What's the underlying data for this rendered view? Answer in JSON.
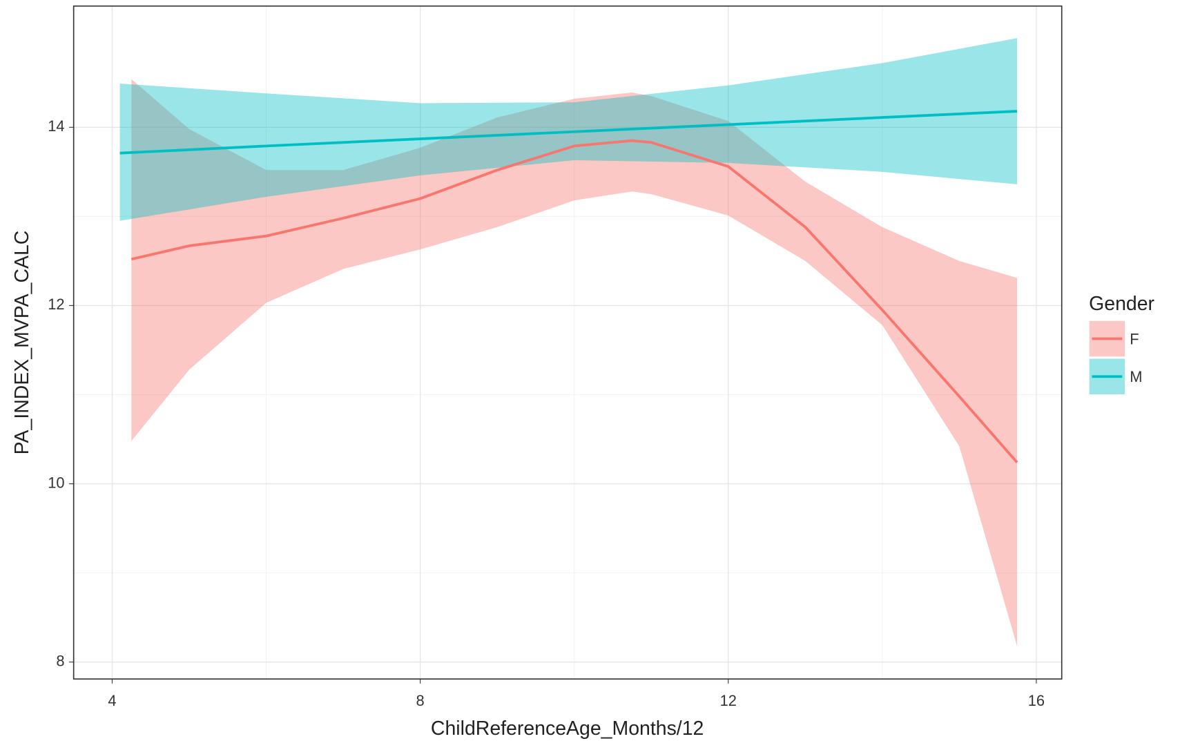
{
  "chart_data": {
    "type": "line-ribbon",
    "xlabel": "ChildReferenceAge_Months/12",
    "ylabel": "PA_INDEX_MVPA_CALC",
    "legend_title": "Gender",
    "xlim": [
      3.5,
      16.33
    ],
    "ylim": [
      7.81,
      15.36
    ],
    "xticks": [
      4,
      8,
      12,
      16
    ],
    "yticks": [
      8,
      10,
      12,
      14
    ],
    "x_minor_ticks": [
      6,
      10,
      14
    ],
    "y_minor_ticks": [
      9,
      11,
      13
    ],
    "grid": true,
    "legend": "right",
    "series": [
      {
        "name": "F",
        "color": "#F8766D",
        "x": [
          4.25,
          5,
          6,
          7,
          8,
          9,
          10,
          10.75,
          11,
          12,
          13,
          14,
          15,
          15.75
        ],
        "values": [
          12.52,
          12.67,
          12.78,
          12.98,
          13.2,
          13.52,
          13.79,
          13.85,
          13.83,
          13.56,
          12.88,
          11.95,
          10.98,
          10.24
        ],
        "upper": [
          14.54,
          13.98,
          13.52,
          13.52,
          13.77,
          14.11,
          14.32,
          14.39,
          14.35,
          14.07,
          13.39,
          12.88,
          12.5,
          12.31
        ],
        "lower": [
          10.48,
          11.28,
          12.03,
          12.41,
          12.63,
          12.88,
          13.18,
          13.28,
          13.25,
          13.01,
          12.5,
          11.78,
          10.42,
          8.18
        ]
      },
      {
        "name": "M",
        "color": "#00BFC4",
        "x": [
          4.1,
          6,
          8,
          10,
          12,
          14,
          15.75
        ],
        "values": [
          13.71,
          13.79,
          13.87,
          13.95,
          14.03,
          14.11,
          14.18
        ],
        "upper": [
          14.49,
          14.38,
          14.27,
          14.28,
          14.47,
          14.72,
          15.0
        ],
        "lower": [
          12.95,
          13.22,
          13.46,
          13.63,
          13.6,
          13.5,
          13.36
        ]
      }
    ]
  }
}
